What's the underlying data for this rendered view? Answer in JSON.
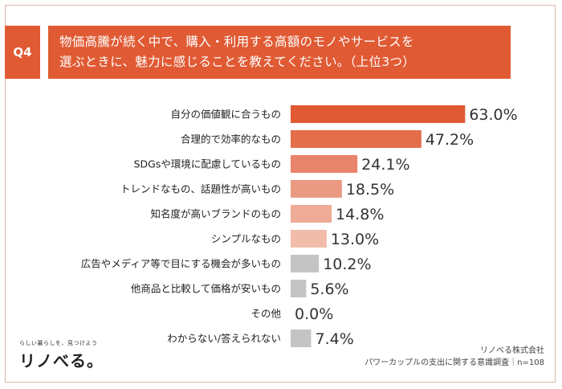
{
  "question": {
    "badge": "Q4",
    "title_line1": "物価高騰が続く中で、購入・利用する高額のモノやサービスを",
    "title_line2": "選ぶときに、魅力に感じることを教えてください。（上位3つ）"
  },
  "chart_data": {
    "type": "bar",
    "orientation": "horizontal",
    "categories": [
      "自分の価値観に合うもの",
      "合理的で効率的なもの",
      "SDGsや環境に配慮しているもの",
      "トレンドなもの、話題性が高いもの",
      "知名度が高いブランドのもの",
      "シンプルなもの",
      "広告やメディア等で目にする機会が多いもの",
      "他商品と比較して価格が安いもの",
      "その他",
      "わからない/答えられない"
    ],
    "values": [
      63.0,
      47.2,
      24.1,
      18.5,
      14.8,
      13.0,
      10.2,
      5.6,
      0.0,
      7.4
    ],
    "value_labels": [
      "63.0%",
      "47.2%",
      "24.1%",
      "18.5%",
      "14.8%",
      "13.0%",
      "10.2%",
      "5.6%",
      "0.0%",
      "7.4%"
    ],
    "colors": [
      "#e05a33",
      "#e46d4c",
      "#e8846a",
      "#eb9a82",
      "#eeab96",
      "#f1bcaa",
      "#c4c4c4",
      "#c4c4c4",
      "#c4c4c4",
      "#c4c4c4"
    ],
    "xlim": [
      0,
      70
    ],
    "grid": false,
    "legend": "none"
  },
  "footer": {
    "logo_tagline": "らしい暮らしを、見つけよう",
    "logo_name": "リノべる。",
    "company": "リノべる株式会社",
    "survey": "パワーカップルの支出に関する意識調査｜n=108"
  }
}
